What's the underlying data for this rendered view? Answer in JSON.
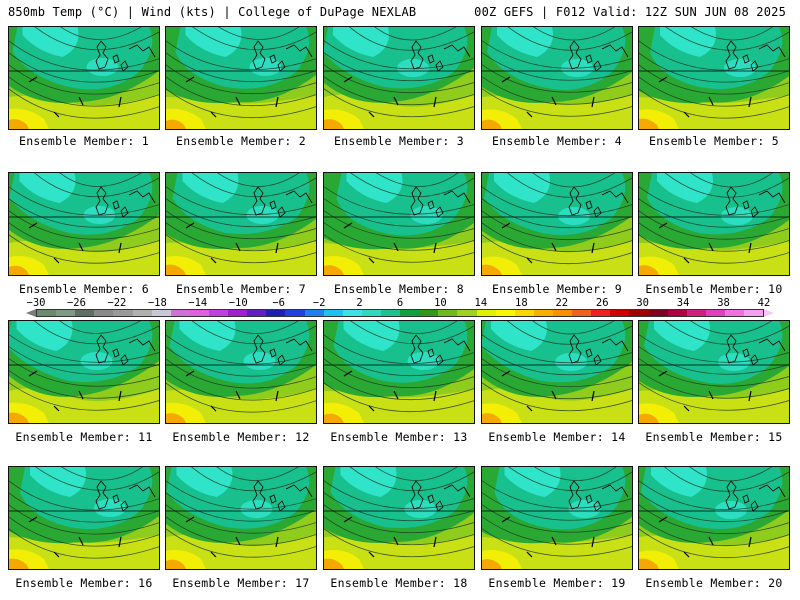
{
  "header": {
    "left_title": "850mb Temp (°C) | Wind (kts) | College of DuPage NEXLAB",
    "right_title": "00Z GEFS | F012 Valid: 12Z SUN JUN 08 2025"
  },
  "panels": [
    {
      "label": "Ensemble Member: 1",
      "member": 1
    },
    {
      "label": "Ensemble Member: 2",
      "member": 2
    },
    {
      "label": "Ensemble Member: 3",
      "member": 3
    },
    {
      "label": "Ensemble Member: 4",
      "member": 4
    },
    {
      "label": "Ensemble Member: 5",
      "member": 5
    },
    {
      "label": "Ensemble Member: 6",
      "member": 6
    },
    {
      "label": "Ensemble Member: 7",
      "member": 7
    },
    {
      "label": "Ensemble Member: 8",
      "member": 8
    },
    {
      "label": "Ensemble Member: 9",
      "member": 9
    },
    {
      "label": "Ensemble Member: 10",
      "member": 10
    },
    {
      "label": "Ensemble Member: 11",
      "member": 11
    },
    {
      "label": "Ensemble Member: 12",
      "member": 12
    },
    {
      "label": "Ensemble Member: 13",
      "member": 13
    },
    {
      "label": "Ensemble Member: 14",
      "member": 14
    },
    {
      "label": "Ensemble Member: 15",
      "member": 15
    },
    {
      "label": "Ensemble Member: 16",
      "member": 16
    },
    {
      "label": "Ensemble Member: 17",
      "member": 17
    },
    {
      "label": "Ensemble Member: 18",
      "member": 18
    },
    {
      "label": "Ensemble Member: 19",
      "member": 19
    },
    {
      "label": "Ensemble Member: 20",
      "member": 20
    }
  ],
  "colorbar": {
    "ticks": [
      "-30",
      "-26",
      "-22",
      "-18",
      "-14",
      "-10",
      "-6",
      "-2",
      "2",
      "6",
      "10",
      "14",
      "18",
      "22",
      "26",
      "30",
      "34",
      "38",
      "42"
    ],
    "colors": [
      "#6e8a6e",
      "#7e9a84",
      "#5f6f66",
      "#8a8a8a",
      "#9a9a9a",
      "#b0b0b0",
      "#c8c8d8",
      "#d070d8",
      "#e060e0",
      "#c040e0",
      "#a020d0",
      "#6020c0",
      "#2020b0",
      "#2040e0",
      "#2080f0",
      "#20c0f0",
      "#40e0e8",
      "#30d8c0",
      "#20c090",
      "#10a040",
      "#309818",
      "#70b820",
      "#a0d020",
      "#e0f000",
      "#f8f800",
      "#f8d800",
      "#f8b000",
      "#f89000",
      "#f06020",
      "#f02020",
      "#d00000",
      "#a00000",
      "#800020",
      "#b00040",
      "#d02080",
      "#e040c0",
      "#f070e0",
      "#f4a0f0"
    ],
    "fill_colors": {
      "cold_cyan": "#33e8cf",
      "teal": "#18c08e",
      "green": "#2aa834",
      "yellow_green": "#8fcc1c",
      "lime": "#c8e014",
      "yellow": "#f2ee06",
      "orange": "#f5a800"
    }
  }
}
